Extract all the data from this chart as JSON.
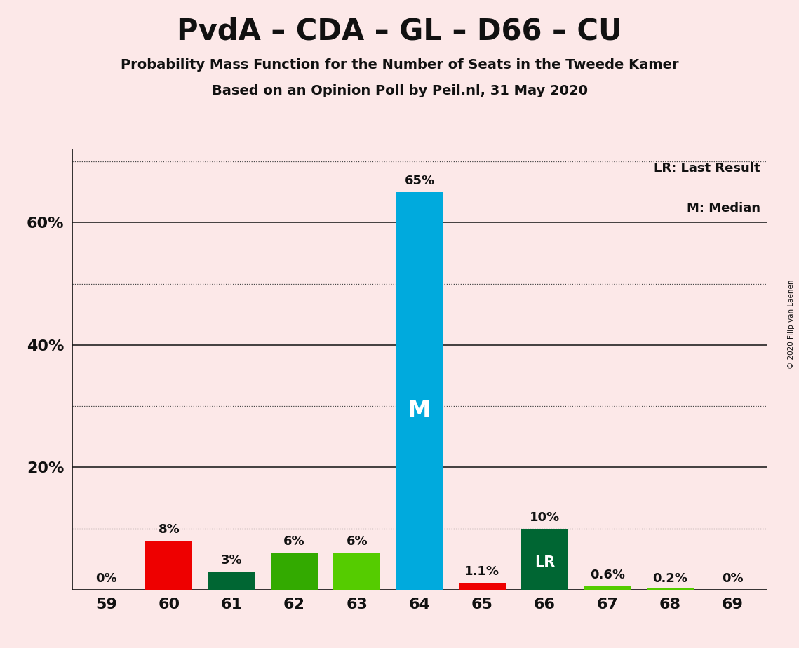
{
  "title": "PvdA – CDA – GL – D66 – CU",
  "subtitle1": "Probability Mass Function for the Number of Seats in the Tweede Kamer",
  "subtitle2": "Based on an Opinion Poll by Peil.nl, 31 May 2020",
  "copyright": "© 2020 Filip van Laenen",
  "categories": [
    59,
    60,
    61,
    62,
    63,
    64,
    65,
    66,
    67,
    68,
    69
  ],
  "values": [
    0.0,
    8.0,
    3.0,
    6.0,
    6.0,
    65.0,
    1.1,
    10.0,
    0.6,
    0.2,
    0.0
  ],
  "labels": [
    "0%",
    "8%",
    "3%",
    "6%",
    "6%",
    "65%",
    "1.1%",
    "10%",
    "0.6%",
    "0.2%",
    "0%"
  ],
  "colors": [
    "#ee0000",
    "#ee0000",
    "#006633",
    "#33aa00",
    "#55cc00",
    "#00aadd",
    "#ee0000",
    "#006633",
    "#55cc00",
    "#55cc00",
    "#55cc00"
  ],
  "median_bar": 64,
  "lr_bar": 66,
  "median_label": "M",
  "lr_label": "LR",
  "legend_lr": "LR: Last Result",
  "legend_m": "M: Median",
  "background_color": "#fce8e8",
  "ylim": [
    0,
    72
  ],
  "dotted_grid_ticks": [
    10,
    30,
    50,
    70
  ],
  "solid_grid_ticks": [
    20,
    40,
    60
  ],
  "ytick_positions": [
    20,
    40,
    60
  ],
  "ytick_labels": [
    "20%",
    "40%",
    "60%"
  ]
}
